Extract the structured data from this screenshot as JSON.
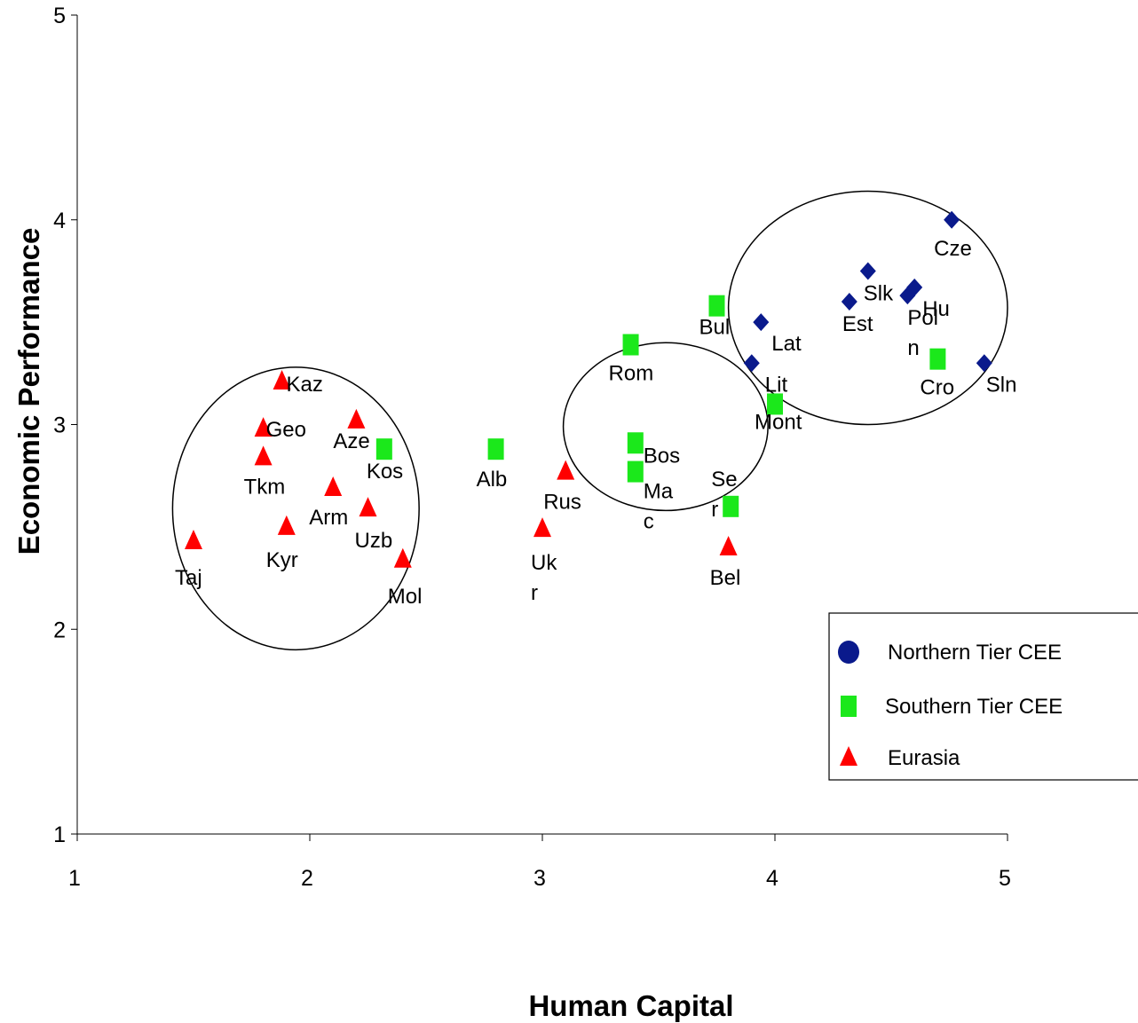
{
  "chart_data": {
    "type": "scatter",
    "xlabel": "Human Capital",
    "ylabel": "Economic Performance",
    "xlim": [
      1,
      5
    ],
    "ylim": [
      1,
      5
    ],
    "xticks": [
      "1",
      "2",
      "3",
      "4",
      "5"
    ],
    "yticks": [
      "1",
      "2",
      "3",
      "4",
      "5"
    ],
    "grid": false,
    "legend_position": "bottom-right",
    "series": [
      {
        "name": "Northern Tier CEE",
        "marker": "diamond",
        "color": "#0a1a8c",
        "points": [
          {
            "label": "Cze",
            "x": 4.76,
            "y": 4.0
          },
          {
            "label": "Slk",
            "x": 4.4,
            "y": 3.75
          },
          {
            "label": "Hu",
            "x": 4.6,
            "y": 3.67
          },
          {
            "label": "Pol",
            "x": 4.57,
            "y": 3.63
          },
          {
            "label": "Est",
            "x": 4.32,
            "y": 3.6
          },
          {
            "label": "Lat",
            "x": 3.94,
            "y": 3.5
          },
          {
            "label": "Lit",
            "x": 3.9,
            "y": 3.3
          },
          {
            "label": "Sln",
            "x": 4.9,
            "y": 3.3
          }
        ]
      },
      {
        "name": "Southern Tier CEE",
        "marker": "square",
        "color": "#1be81b",
        "points": [
          {
            "label": "Bul",
            "x": 3.75,
            "y": 3.58
          },
          {
            "label": "Rom",
            "x": 3.38,
            "y": 3.39
          },
          {
            "label": "Cro",
            "x": 4.7,
            "y": 3.32
          },
          {
            "label": "Mont",
            "x": 4.0,
            "y": 3.1
          },
          {
            "label": "Bos",
            "x": 3.4,
            "y": 2.91
          },
          {
            "label": "Kos",
            "x": 2.32,
            "y": 2.88
          },
          {
            "label": "Alb",
            "x": 2.8,
            "y": 2.88
          },
          {
            "label": "Mac",
            "x": 3.4,
            "y": 2.77
          },
          {
            "label": "Ser",
            "x": 3.81,
            "y": 2.6
          }
        ]
      },
      {
        "name": "Eurasia",
        "marker": "triangle",
        "color": "#ff0000",
        "points": [
          {
            "label": "Kaz",
            "x": 1.88,
            "y": 3.21
          },
          {
            "label": "Aze",
            "x": 2.2,
            "y": 3.02
          },
          {
            "label": "Geo",
            "x": 1.8,
            "y": 2.98
          },
          {
            "label": "Tkm",
            "x": 1.8,
            "y": 2.84
          },
          {
            "label": "Rus",
            "x": 3.1,
            "y": 2.77
          },
          {
            "label": "Arm",
            "x": 2.1,
            "y": 2.69
          },
          {
            "label": "Uzb",
            "x": 2.25,
            "y": 2.59
          },
          {
            "label": "Kyr",
            "x": 1.9,
            "y": 2.5
          },
          {
            "label": "Ukr",
            "x": 3.0,
            "y": 2.49
          },
          {
            "label": "Taj",
            "x": 1.5,
            "y": 2.43
          },
          {
            "label": "Bel",
            "x": 3.8,
            "y": 2.4
          },
          {
            "label": "Mol",
            "x": 2.4,
            "y": 2.34
          }
        ]
      }
    ]
  },
  "point_label_lines": {
    "Ukr": [
      "Uk",
      "r"
    ],
    "Mac": [
      "Ma",
      "c"
    ],
    "Ser": [
      "Se",
      "r"
    ],
    "Pol": [
      "Pol",
      "n"
    ]
  },
  "group_ellipses": [
    {
      "label": "Eurasia group",
      "cx": 1.94,
      "cy": 2.59,
      "rx": 0.53,
      "ry": 0.69
    },
    {
      "label": "Southern Tier group",
      "cx": 3.53,
      "cy": 2.99,
      "rx": 0.44,
      "ry": 0.41
    },
    {
      "label": "Northern Tier group",
      "cx": 4.4,
      "cy": 3.57,
      "rx": 0.6,
      "ry": 0.57
    }
  ]
}
